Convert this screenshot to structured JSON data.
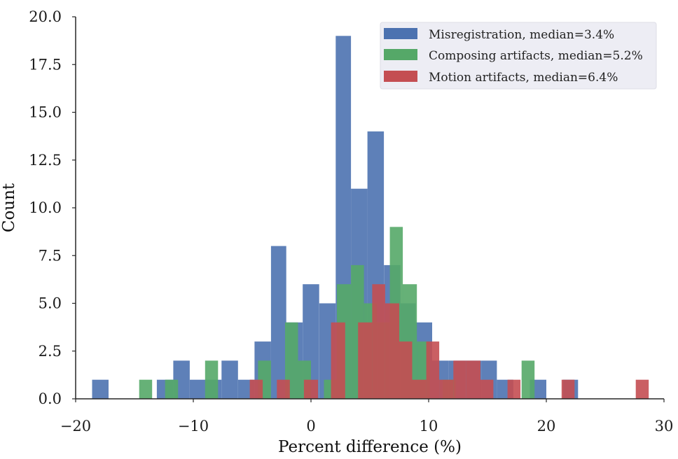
{
  "chart_data": {
    "type": "histogram",
    "xlabel": "Percent difference (%)",
    "ylabel": "Count",
    "xlim": [
      -20,
      30
    ],
    "ylim": [
      0,
      20
    ],
    "x_ticks": [
      -20,
      -10,
      0,
      10,
      20,
      30
    ],
    "x_tick_labels": [
      "−20",
      "−10",
      "0",
      "10",
      "20",
      "30"
    ],
    "y_ticks": [
      0,
      2.5,
      5,
      7.5,
      10,
      12.5,
      15,
      17.5,
      20
    ],
    "y_tick_labels": [
      "0.0",
      "2.5",
      "5.0",
      "7.5",
      "10.0",
      "12.5",
      "15.0",
      "17.5",
      "20.0"
    ],
    "grid": false,
    "legend_position": "top-right",
    "series": [
      {
        "name": "Misregistration, median=3.4%",
        "color": "#4c72b0",
        "bins": [
          {
            "x0": -18.6,
            "x1": -17.2,
            "count": 1
          },
          {
            "x0": -13.1,
            "x1": -11.7,
            "count": 1
          },
          {
            "x0": -11.7,
            "x1": -10.3,
            "count": 2
          },
          {
            "x0": -10.3,
            "x1": -8.9,
            "count": 1
          },
          {
            "x0": -8.9,
            "x1": -7.6,
            "count": 1
          },
          {
            "x0": -7.6,
            "x1": -6.2,
            "count": 2
          },
          {
            "x0": -6.2,
            "x1": -4.8,
            "count": 1
          },
          {
            "x0": -4.8,
            "x1": -3.4,
            "count": 3
          },
          {
            "x0": -3.4,
            "x1": -2.1,
            "count": 8
          },
          {
            "x0": -2.1,
            "x1": -0.7,
            "count": 4
          },
          {
            "x0": -0.7,
            "x1": 0.7,
            "count": 6
          },
          {
            "x0": 0.7,
            "x1": 2.1,
            "count": 5
          },
          {
            "x0": 2.1,
            "x1": 3.4,
            "count": 19
          },
          {
            "x0": 3.4,
            "x1": 4.8,
            "count": 11
          },
          {
            "x0": 4.8,
            "x1": 6.2,
            "count": 14
          },
          {
            "x0": 6.2,
            "x1": 7.6,
            "count": 7
          },
          {
            "x0": 7.6,
            "x1": 8.9,
            "count": 5
          },
          {
            "x0": 8.9,
            "x1": 10.3,
            "count": 4
          },
          {
            "x0": 10.3,
            "x1": 11.7,
            "count": 2
          },
          {
            "x0": 11.7,
            "x1": 13.1,
            "count": 2
          },
          {
            "x0": 13.1,
            "x1": 14.5,
            "count": 2
          },
          {
            "x0": 14.5,
            "x1": 15.8,
            "count": 2
          },
          {
            "x0": 15.8,
            "x1": 17.2,
            "count": 1
          },
          {
            "x0": 18.6,
            "x1": 20.0,
            "count": 1
          },
          {
            "x0": 21.4,
            "x1": 22.7,
            "count": 1
          }
        ]
      },
      {
        "name": "Composing artifacts, median=5.2%",
        "color": "#55a868",
        "bins": [
          {
            "x0": -14.6,
            "x1": -13.5,
            "count": 1
          },
          {
            "x0": -12.4,
            "x1": -11.3,
            "count": 1
          },
          {
            "x0": -9.0,
            "x1": -7.9,
            "count": 2
          },
          {
            "x0": -4.5,
            "x1": -3.4,
            "count": 2
          },
          {
            "x0": -2.2,
            "x1": -1.1,
            "count": 4
          },
          {
            "x0": -1.1,
            "x1": 0.0,
            "count": 2
          },
          {
            "x0": 1.1,
            "x1": 2.2,
            "count": 1
          },
          {
            "x0": 2.2,
            "x1": 3.4,
            "count": 6
          },
          {
            "x0": 3.4,
            "x1": 4.5,
            "count": 7
          },
          {
            "x0": 4.5,
            "x1": 5.6,
            "count": 5
          },
          {
            "x0": 5.6,
            "x1": 6.7,
            "count": 4
          },
          {
            "x0": 6.7,
            "x1": 7.8,
            "count": 9
          },
          {
            "x0": 7.8,
            "x1": 9.0,
            "count": 6
          },
          {
            "x0": 9.0,
            "x1": 10.1,
            "count": 3
          },
          {
            "x0": 11.2,
            "x1": 12.3,
            "count": 1
          },
          {
            "x0": 17.9,
            "x1": 19.0,
            "count": 2
          }
        ]
      },
      {
        "name": "Motion artifacts, median=6.4%",
        "color": "#c44e52",
        "bins": [
          {
            "x0": -5.2,
            "x1": -4.1,
            "count": 1
          },
          {
            "x0": -2.9,
            "x1": -1.8,
            "count": 1
          },
          {
            "x0": -0.6,
            "x1": 0.6,
            "count": 1
          },
          {
            "x0": 1.7,
            "x1": 2.9,
            "count": 4
          },
          {
            "x0": 4.0,
            "x1": 5.2,
            "count": 4
          },
          {
            "x0": 5.2,
            "x1": 6.3,
            "count": 6
          },
          {
            "x0": 6.3,
            "x1": 7.5,
            "count": 5
          },
          {
            "x0": 7.5,
            "x1": 8.6,
            "count": 3
          },
          {
            "x0": 8.6,
            "x1": 9.8,
            "count": 1
          },
          {
            "x0": 9.8,
            "x1": 10.9,
            "count": 3
          },
          {
            "x0": 10.9,
            "x1": 12.1,
            "count": 1
          },
          {
            "x0": 12.1,
            "x1": 13.2,
            "count": 2
          },
          {
            "x0": 13.2,
            "x1": 14.4,
            "count": 2
          },
          {
            "x0": 14.4,
            "x1": 15.5,
            "count": 1
          },
          {
            "x0": 16.7,
            "x1": 17.8,
            "count": 1
          },
          {
            "x0": 21.3,
            "x1": 22.4,
            "count": 1
          },
          {
            "x0": 27.6,
            "x1": 28.7,
            "count": 1
          }
        ]
      }
    ]
  }
}
